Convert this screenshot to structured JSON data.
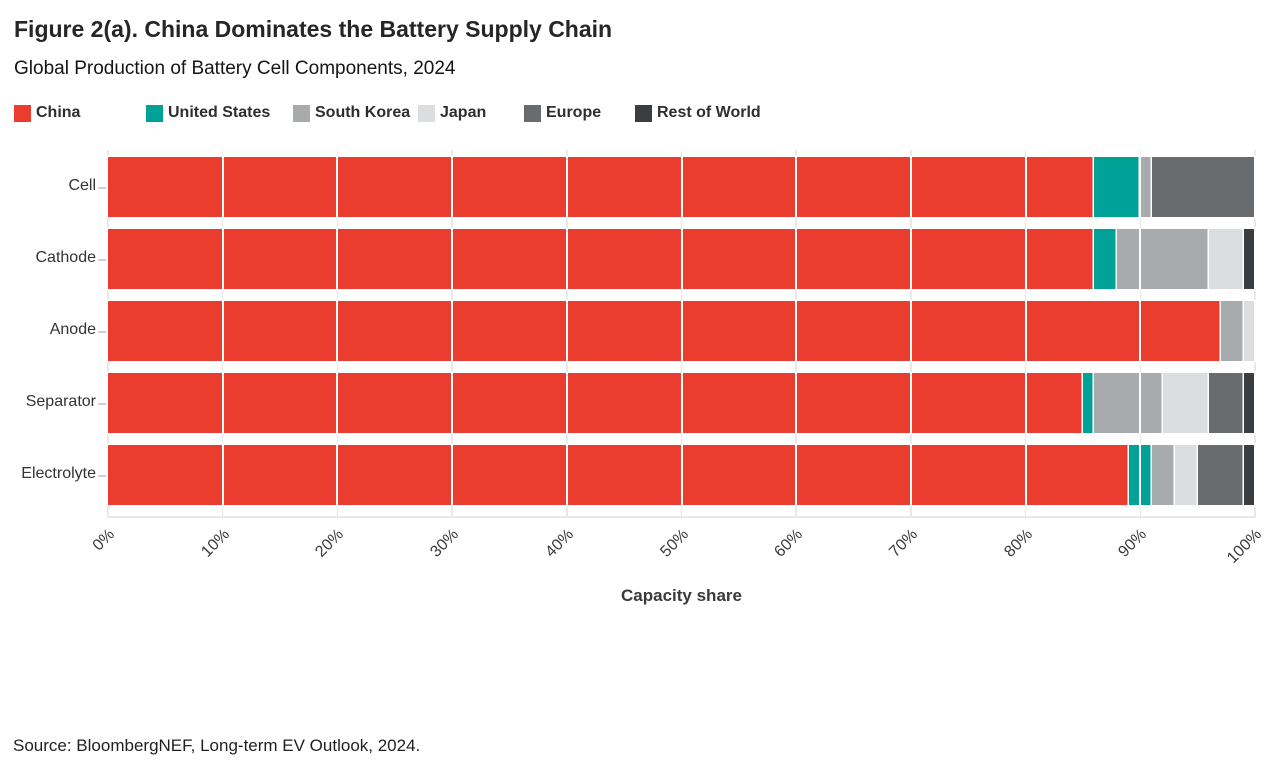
{
  "title": "Figure 2(a). China Dominates the Battery Supply Chain",
  "subtitle": "Global Production of Battery Cell Components, 2024",
  "source": "Source: BloombergNEF, Long-term EV Outlook, 2024.",
  "chart_data": {
    "type": "bar",
    "stacked": true,
    "orientation": "horizontal",
    "title": "Figure 2(a). China Dominates the Battery Supply Chain",
    "subtitle": "Global Production of Battery Cell Components, 2024",
    "xlabel": "Capacity share",
    "xlim": [
      0,
      100
    ],
    "x_ticks": [
      "0%",
      "10%",
      "20%",
      "30%",
      "40%",
      "50%",
      "60%",
      "70%",
      "80%",
      "90%",
      "100%"
    ],
    "grid": true,
    "legend_position": "top",
    "categories": [
      "Cell",
      "Cathode",
      "Anode",
      "Separator",
      "Electrolyte"
    ],
    "series": [
      {
        "name": "China",
        "color": "#eb3c30",
        "values": [
          86,
          86,
          97,
          85,
          89
        ]
      },
      {
        "name": "United States",
        "color": "#00a298",
        "values": [
          4,
          2,
          0,
          1,
          2
        ]
      },
      {
        "name": "South Korea",
        "color": "#a8abae",
        "values": [
          1,
          8,
          2,
          6,
          2
        ]
      },
      {
        "name": "Japan",
        "color": "#dcddde",
        "values": [
          0,
          3,
          1,
          4,
          2
        ]
      },
      {
        "name": "Europe",
        "color": "#696c6e",
        "values": [
          9,
          0,
          0,
          3,
          4
        ]
      },
      {
        "name": "Rest of World",
        "color": "#3b3e41",
        "values": [
          0,
          1,
          0,
          1,
          1
        ]
      }
    ]
  }
}
